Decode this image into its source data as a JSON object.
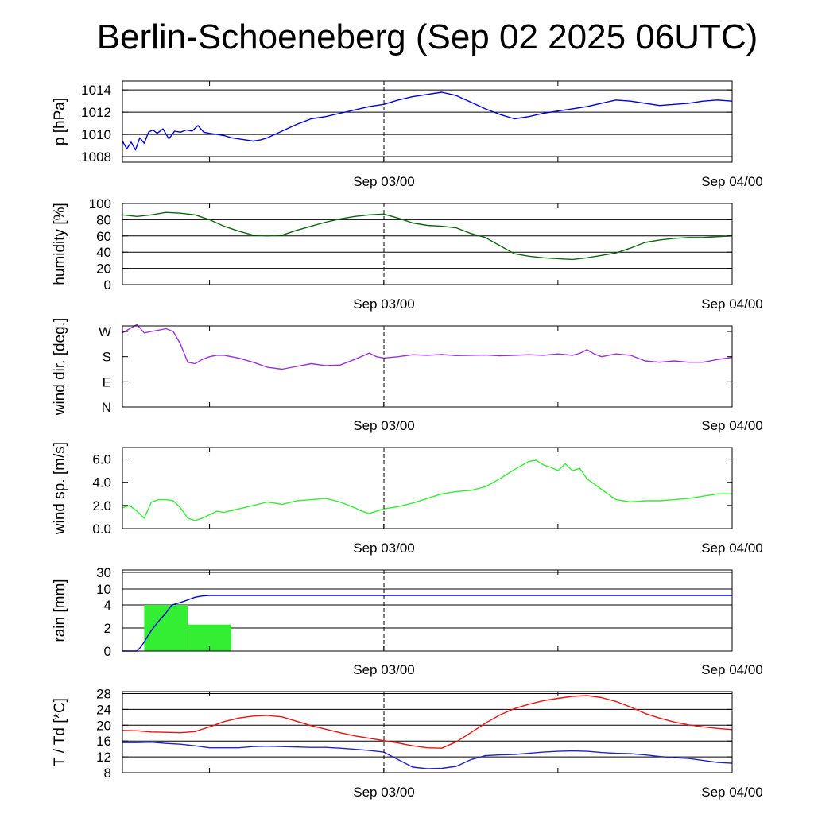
{
  "title": "Berlin-Schoeneberg (Sep 02 2025 06UTC)",
  "x_tick_labels": [
    "Sep 03/00",
    "Sep 04/00"
  ],
  "chart_data": [
    {
      "id": "pressure",
      "type": "line",
      "title": "",
      "xlabel": "",
      "ylabel": "p [hPa]",
      "x_unit": "hours since Sep 02 06UTC",
      "xlim": [
        0,
        42
      ],
      "ylim": [
        1007.5,
        1014.8
      ],
      "yticks": [
        1008,
        1010,
        1012,
        1014
      ],
      "ytick_labels": [
        "1008",
        "1010",
        "1012",
        "1014"
      ],
      "grid": true,
      "series": [
        {
          "name": "",
          "color": "#0000dd",
          "x": [
            0,
            0.3,
            0.6,
            0.9,
            1.2,
            1.5,
            1.8,
            2.1,
            2.4,
            2.8,
            3.2,
            3.6,
            4.0,
            4.4,
            4.8,
            5.2,
            5.6,
            6.0,
            6.5,
            7.0,
            7.5,
            8.0,
            8.5,
            9.0,
            9.5,
            10.0,
            11.0,
            12.0,
            13.0,
            14.0,
            15.0,
            16.0,
            17.0,
            18.0,
            19.0,
            20.0,
            21.0,
            22.0,
            23.0,
            24.0,
            25.0,
            26.0,
            27.0,
            28.0,
            29.0,
            30.0,
            31.0,
            32.0,
            33.0,
            34.0,
            35.0,
            36.0,
            37.0,
            38.0,
            39.0,
            40.0,
            41.0,
            42.0
          ],
          "y": [
            1009.4,
            1008.7,
            1009.3,
            1008.6,
            1009.7,
            1009.2,
            1010.2,
            1010.4,
            1010.1,
            1010.5,
            1009.6,
            1010.3,
            1010.2,
            1010.4,
            1010.3,
            1010.8,
            1010.2,
            1010.1,
            1010.0,
            1009.9,
            1009.7,
            1009.6,
            1009.5,
            1009.4,
            1009.5,
            1009.7,
            1010.3,
            1010.9,
            1011.4,
            1011.6,
            1011.9,
            1012.2,
            1012.5,
            1012.7,
            1013.1,
            1013.4,
            1013.6,
            1013.8,
            1013.5,
            1012.9,
            1012.3,
            1011.8,
            1011.4,
            1011.6,
            1011.9,
            1012.1,
            1012.3,
            1012.5,
            1012.8,
            1013.1,
            1013.0,
            1012.8,
            1012.6,
            1012.7,
            1012.8,
            1013.0,
            1013.1,
            1013.0
          ]
        }
      ]
    },
    {
      "id": "humidity",
      "type": "line",
      "title": "",
      "xlabel": "",
      "ylabel": "humidity [%]",
      "xlim": [
        0,
        42
      ],
      "ylim": [
        0,
        100
      ],
      "yticks": [
        0,
        20,
        40,
        60,
        80,
        100
      ],
      "ytick_labels": [
        "0",
        "20",
        "40",
        "60",
        "80",
        "100"
      ],
      "grid": true,
      "series": [
        {
          "name": "",
          "color": "#116611",
          "x": [
            0,
            1,
            2,
            3,
            4,
            5,
            6,
            7,
            8,
            9,
            10,
            11,
            12,
            13,
            14,
            15,
            16,
            17,
            18,
            19,
            20,
            21,
            22,
            23,
            24,
            25,
            26,
            27,
            28,
            29,
            30,
            31,
            32,
            33,
            34,
            35,
            36,
            37,
            38,
            39,
            40,
            41,
            42
          ],
          "y": [
            86,
            84,
            86,
            89,
            88,
            86,
            80,
            72,
            66,
            61,
            60,
            61,
            67,
            72,
            77,
            81,
            84,
            86,
            87,
            82,
            76,
            73,
            72,
            70,
            63,
            58,
            48,
            38,
            35,
            33,
            32,
            31,
            33,
            36,
            39,
            45,
            52,
            55,
            57,
            58,
            58,
            59,
            60
          ]
        }
      ]
    },
    {
      "id": "wind_direction",
      "type": "line",
      "title": "",
      "xlabel": "",
      "ylabel": "wind dir. [deg.]",
      "xlim": [
        0,
        42
      ],
      "ylim": [
        0,
        290
      ],
      "yticks": [
        0,
        90,
        180,
        270
      ],
      "ytick_labels": [
        "N",
        "E",
        "S",
        "W"
      ],
      "grid": false,
      "series": [
        {
          "name": "",
          "color": "#9933dd",
          "x": [
            0,
            0.5,
            1.0,
            1.5,
            2.0,
            2.5,
            3.0,
            3.5,
            4.0,
            4.5,
            5.0,
            5.5,
            6.0,
            6.5,
            7.0,
            7.5,
            8.0,
            9.0,
            10.0,
            11.0,
            12.0,
            13.0,
            14.0,
            15.0,
            16.0,
            17.0,
            17.5,
            18.0,
            19.0,
            20.0,
            21.0,
            22.0,
            23.0,
            24.0,
            25.0,
            26.0,
            27.0,
            28.0,
            29.0,
            30.0,
            31.0,
            31.5,
            32.0,
            32.5,
            33.0,
            34.0,
            35.0,
            36.0,
            37.0,
            38.0,
            39.0,
            40.0,
            41.0,
            42.0
          ],
          "y": [
            265,
            280,
            295,
            265,
            270,
            275,
            280,
            270,
            225,
            160,
            155,
            170,
            180,
            185,
            185,
            180,
            175,
            160,
            142,
            135,
            145,
            155,
            148,
            150,
            170,
            193,
            180,
            175,
            180,
            187,
            185,
            188,
            184,
            185,
            186,
            183,
            185,
            187,
            185,
            190,
            185,
            192,
            205,
            190,
            180,
            190,
            185,
            165,
            160,
            165,
            160,
            160,
            170,
            177
          ]
        }
      ]
    },
    {
      "id": "wind_speed",
      "type": "line",
      "title": "",
      "xlabel": "",
      "ylabel": "wind sp. [m/s]",
      "xlim": [
        0,
        42
      ],
      "ylim": [
        0,
        7
      ],
      "yticks": [
        0,
        2,
        4,
        6
      ],
      "ytick_labels": [
        "0.0",
        "2.0",
        "4.0",
        "6.0"
      ],
      "grid": false,
      "series": [
        {
          "name": "",
          "color": "#33ee33",
          "x": [
            0,
            0.5,
            1.0,
            1.5,
            2.0,
            2.5,
            3.0,
            3.5,
            4.0,
            4.5,
            5.0,
            5.5,
            6.0,
            6.5,
            7.0,
            8.0,
            9.0,
            10.0,
            11.0,
            12.0,
            13.0,
            14.0,
            15.0,
            16.0,
            16.5,
            17.0,
            17.5,
            18.0,
            19.0,
            20.0,
            21.0,
            22.0,
            23.0,
            24.0,
            25.0,
            26.0,
            27.0,
            28.0,
            28.5,
            29.0,
            29.5,
            30.0,
            30.5,
            31.0,
            31.5,
            32.0,
            33.0,
            34.0,
            35.0,
            36.0,
            37.0,
            38.0,
            39.0,
            40.0,
            41.0,
            42.0
          ],
          "y": [
            1.8,
            2.0,
            1.5,
            0.9,
            2.3,
            2.5,
            2.5,
            2.4,
            1.8,
            0.9,
            0.7,
            0.9,
            1.2,
            1.5,
            1.4,
            1.7,
            2.0,
            2.3,
            2.1,
            2.4,
            2.5,
            2.6,
            2.3,
            1.8,
            1.5,
            1.3,
            1.5,
            1.7,
            1.9,
            2.2,
            2.6,
            3.0,
            3.2,
            3.3,
            3.6,
            4.3,
            5.1,
            5.8,
            5.9,
            5.5,
            5.3,
            5.0,
            5.6,
            5.0,
            5.2,
            4.3,
            3.4,
            2.5,
            2.3,
            2.4,
            2.4,
            2.5,
            2.6,
            2.8,
            3.0,
            3.0
          ]
        }
      ]
    },
    {
      "id": "rain",
      "type": "bar",
      "title": "",
      "xlabel": "",
      "ylabel": "rain [mm]",
      "xlim": [
        0,
        42
      ],
      "yticks": [
        0,
        2,
        4,
        10,
        30
      ],
      "ytick_labels": [
        "0",
        "2",
        "4",
        "10",
        "30"
      ],
      "y_scale": "nonlinear",
      "grid": true,
      "bars": [
        {
          "x_start": 1.5,
          "x_end": 4.5,
          "value": 4,
          "color": "#33ee33"
        },
        {
          "x_start": 4.5,
          "x_end": 7.5,
          "value": 2.3,
          "color": "#33ee33"
        }
      ],
      "series": [
        {
          "name": "",
          "color": "#0000dd",
          "x": [
            0,
            1.0,
            1.3,
            1.6,
            2.0,
            2.5,
            3.0,
            3.4,
            3.8,
            4.2,
            4.6,
            5.0,
            5.5,
            6.0,
            7.0,
            8.0,
            42.0
          ],
          "y": [
            0,
            0,
            0.4,
            1.0,
            1.8,
            2.6,
            3.3,
            4.0,
            4.6,
            5.3,
            6.1,
            6.9,
            7.4,
            7.6,
            7.6,
            7.6,
            7.6
          ]
        }
      ]
    },
    {
      "id": "temperature",
      "type": "line",
      "title": "",
      "xlabel": "",
      "ylabel": "T / Td [*C]",
      "xlim": [
        0,
        42
      ],
      "ylim": [
        8,
        28.5
      ],
      "yticks": [
        8,
        12,
        16,
        20,
        24,
        28
      ],
      "ytick_labels": [
        "8",
        "12",
        "16",
        "20",
        "24",
        "28"
      ],
      "grid": true,
      "series": [
        {
          "name": "",
          "color": "#ee1111",
          "x": [
            0,
            1,
            2,
            3,
            4,
            5,
            6,
            7,
            8,
            9,
            10,
            11,
            12,
            13,
            14,
            15,
            16,
            17,
            18,
            19,
            20,
            21,
            22,
            23,
            24,
            25,
            26,
            27,
            28,
            29,
            30,
            31,
            32,
            33,
            34,
            35,
            36,
            37,
            38,
            39,
            40,
            41,
            42
          ],
          "y": [
            18.7,
            18.6,
            18.3,
            18.2,
            18.1,
            18.4,
            19.6,
            20.9,
            21.8,
            22.3,
            22.5,
            22.1,
            21.0,
            19.9,
            19.0,
            18.1,
            17.3,
            16.7,
            16.1,
            15.5,
            14.8,
            14.3,
            14.2,
            15.8,
            18.1,
            20.5,
            22.6,
            24.2,
            25.3,
            26.2,
            26.8,
            27.3,
            27.5,
            27.0,
            26.0,
            24.6,
            23.0,
            21.8,
            20.8,
            20.1,
            19.6,
            19.2,
            18.9
          ]
        },
        {
          "name": "",
          "color": "#2222cc",
          "x": [
            0,
            1,
            2,
            3,
            4,
            5,
            6,
            7,
            8,
            9,
            10,
            11,
            12,
            13,
            14,
            15,
            16,
            17,
            18,
            19,
            20,
            21,
            22,
            23,
            24,
            25,
            26,
            27,
            28,
            29,
            30,
            31,
            32,
            33,
            34,
            35,
            36,
            37,
            38,
            39,
            40,
            41,
            42
          ],
          "y": [
            15.6,
            15.6,
            15.7,
            15.4,
            15.2,
            14.8,
            14.3,
            14.3,
            14.3,
            14.6,
            14.7,
            14.6,
            14.5,
            14.4,
            14.4,
            14.2,
            13.9,
            13.6,
            13.2,
            11.3,
            9.4,
            9.0,
            9.1,
            9.6,
            11.3,
            12.3,
            12.5,
            12.6,
            12.9,
            13.2,
            13.4,
            13.5,
            13.4,
            13.1,
            12.9,
            12.8,
            12.5,
            12.1,
            11.8,
            11.6,
            11.1,
            10.6,
            10.4
          ]
        }
      ]
    }
  ]
}
